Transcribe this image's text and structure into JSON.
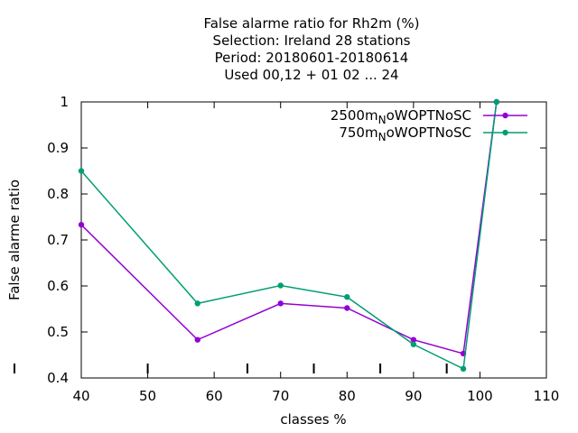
{
  "chart_data": {
    "type": "line",
    "title_lines": [
      "False alarme ratio  for Rh2m (%)",
      "Selection: Ireland     28 stations",
      "Period: 20180601-20180614",
      "Used  00,12  + 01 02 ... 24"
    ],
    "xlabel": "classes %",
    "ylabel": "False alarme ratio",
    "xlim": [
      40,
      110
    ],
    "ylim": [
      0.4,
      1.0
    ],
    "xticks": [
      40,
      50,
      60,
      70,
      80,
      90,
      100,
      110
    ],
    "yticks": [
      0.4,
      0.5,
      0.6,
      0.7,
      0.8,
      0.9,
      1.0
    ],
    "ytick_labels": [
      "0.4",
      "0.5",
      "0.6",
      "0.7",
      "0.8",
      "0.9",
      "1"
    ],
    "class_markers": [
      50,
      65,
      75,
      85,
      95
    ],
    "grid": false,
    "legend_position": "top-right",
    "series": [
      {
        "name_main": "2500m",
        "name_sub": "N",
        "name_rest": "oWOPTNoSC",
        "color": "#9400d3",
        "x": [
          40,
          57.5,
          70,
          80,
          90,
          97.5,
          102.5
        ],
        "y": [
          0.733,
          0.483,
          0.562,
          0.552,
          0.483,
          0.453,
          1.0
        ]
      },
      {
        "name_main": "750m",
        "name_sub": "N",
        "name_rest": "oWOPTNoSC",
        "color": "#009e73",
        "x": [
          40,
          57.5,
          70,
          80,
          90,
          97.5,
          102.5
        ],
        "y": [
          0.85,
          0.562,
          0.601,
          0.576,
          0.473,
          0.42,
          1.0
        ]
      }
    ]
  }
}
